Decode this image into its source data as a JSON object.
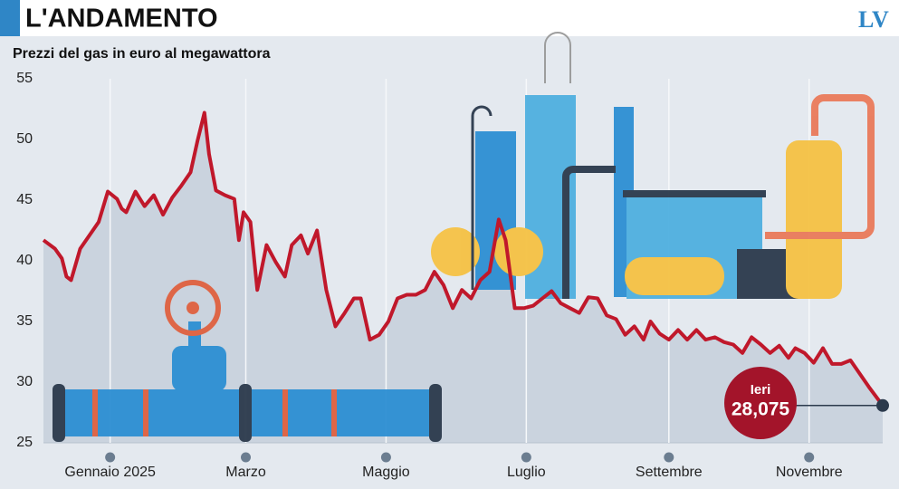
{
  "header": {
    "title": "L'ANDAMENTO",
    "logo": "LV"
  },
  "chart_data": {
    "type": "line",
    "title": "Prezzi del gas in euro al megawattora",
    "x": [
      -28,
      -23,
      -20,
      -18,
      -16,
      -12,
      -8,
      -4,
      0,
      4,
      6,
      8,
      12,
      16,
      20,
      24,
      28,
      32,
      36,
      39,
      42,
      44,
      47,
      51,
      55,
      57,
      59,
      62,
      65,
      69,
      73,
      77,
      80,
      84,
      87,
      91,
      95,
      99,
      103,
      107,
      110,
      114,
      118,
      122,
      126,
      130,
      134,
      138,
      142,
      146,
      150,
      154,
      158,
      162,
      166,
      170,
      173,
      177,
      181,
      185,
      189,
      193,
      197,
      201,
      205,
      209,
      213,
      217,
      221,
      225,
      229,
      233,
      236,
      240,
      244,
      248,
      252,
      256,
      260,
      264,
      268,
      272,
      276,
      280,
      284,
      288,
      292,
      296,
      299,
      303,
      307,
      311,
      315,
      319,
      323,
      327,
      331,
      337
    ],
    "series": [
      {
        "name": "Prezzo gas",
        "color": "#c0182b",
        "values": [
          41.7,
          41.0,
          40.2,
          38.7,
          38.4,
          41.0,
          42.1,
          43.2,
          45.7,
          45.1,
          44.3,
          44.0,
          45.7,
          44.5,
          45.4,
          43.8,
          45.2,
          46.2,
          47.3,
          49.9,
          52.2,
          48.8,
          45.8,
          45.4,
          45.1,
          41.7,
          44.0,
          43.2,
          37.6,
          41.3,
          39.9,
          38.7,
          41.3,
          42.1,
          40.6,
          42.5,
          37.6,
          34.6,
          35.7,
          36.9,
          36.9,
          33.5,
          33.9,
          35.0,
          36.9,
          37.2,
          37.2,
          37.6,
          39.1,
          38.0,
          36.1,
          37.6,
          36.9,
          38.4,
          39.1,
          43.4,
          41.7,
          36.1,
          36.1,
          36.3,
          36.9,
          37.5,
          36.5,
          36.1,
          35.7,
          37.0,
          36.9,
          35.5,
          35.2,
          33.9,
          34.6,
          33.5,
          35.0,
          34.0,
          33.5,
          34.3,
          33.5,
          34.3,
          33.5,
          33.7,
          33.3,
          33.1,
          32.4,
          33.7,
          33.1,
          32.4,
          33.0,
          32.0,
          32.8,
          32.4,
          31.6,
          32.8,
          31.5,
          31.5,
          31.8,
          30.7,
          29.6,
          28.075
        ]
      }
    ],
    "xlim": [
      -28,
      337
    ],
    "xticks": [
      {
        "value": 1,
        "label": "Gennaio 2025"
      },
      {
        "value": 60,
        "label": "Marzo"
      },
      {
        "value": 121,
        "label": "Maggio"
      },
      {
        "value": 182,
        "label": "Luglio"
      },
      {
        "value": 244,
        "label": "Settembre"
      },
      {
        "value": 305,
        "label": "Novembre"
      }
    ],
    "ylim": [
      25,
      55
    ],
    "yticks": [
      25,
      30,
      35,
      40,
      45,
      50,
      55
    ],
    "grid": true,
    "annotations": [
      {
        "text": "Ieri",
        "label": "28,075"
      }
    ]
  }
}
